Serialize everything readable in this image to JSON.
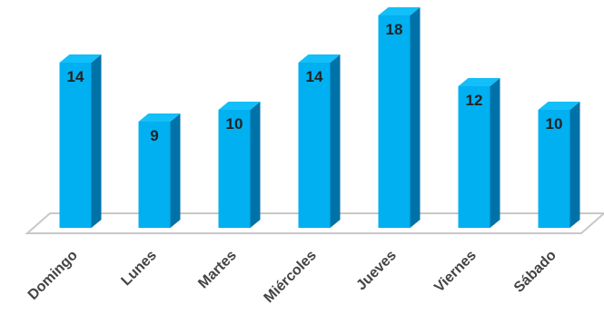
{
  "chart_data": {
    "type": "bar",
    "style": "3d-column",
    "categories": [
      "Domingo",
      "Lunes",
      "Martes",
      "Miércoles",
      "Jueves",
      "Viernes",
      "Sábado"
    ],
    "values": [
      14,
      9,
      10,
      14,
      18,
      12,
      10
    ],
    "title": "",
    "xlabel": "",
    "ylabel": "",
    "ylim": [
      0,
      18
    ],
    "grid": false,
    "legend": "none",
    "data_labels": true,
    "colors": {
      "bar_front": "#00b0f0",
      "bar_top": "#12bff8",
      "bar_side": "#0072a8",
      "floor_edge": "#c8c8c8"
    }
  }
}
